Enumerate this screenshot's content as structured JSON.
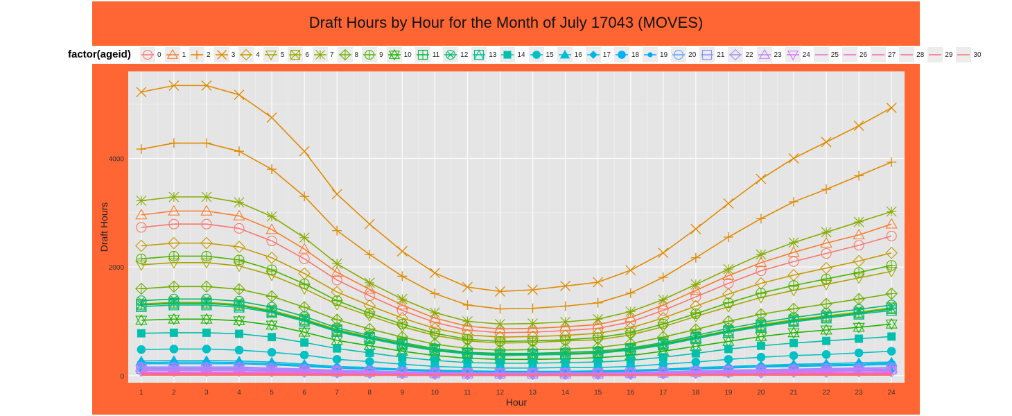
{
  "chart_data": {
    "type": "line",
    "title": "Draft Hours by Hour for the Month of July 17043 (MOVES)",
    "xlabel": "Hour",
    "ylabel": "Draft Hours",
    "x": [
      1,
      2,
      3,
      4,
      5,
      6,
      7,
      8,
      9,
      10,
      11,
      12,
      13,
      14,
      15,
      16,
      17,
      18,
      19,
      20,
      21,
      22,
      23,
      24
    ],
    "xticks": [
      "1",
      "2",
      "3",
      "4",
      "5",
      "6",
      "7",
      "8",
      "9",
      "10",
      "11",
      "12",
      "13",
      "14",
      "15",
      "16",
      "17",
      "18",
      "19",
      "20",
      "21",
      "22",
      "23",
      "24"
    ],
    "yticks": [
      0,
      2000,
      4000
    ],
    "ylim": [
      -130,
      5600
    ],
    "grid": true,
    "legend": {
      "title": "factor(ageid)",
      "position": "top"
    },
    "series": [
      {
        "name": "0",
        "color": "#f8766d",
        "shape": "circle-open",
        "values": [
          2730,
          2790,
          2790,
          2710,
          2480,
          2150,
          1760,
          1470,
          1200,
          980,
          840,
          790,
          800,
          830,
          870,
          990,
          1200,
          1450,
          1700,
          1930,
          2100,
          2250,
          2400,
          2570
        ]
      },
      {
        "name": "1",
        "color": "#f57d2e",
        "shape": "triangle-open",
        "values": [
          2960,
          3030,
          3030,
          2940,
          2690,
          2330,
          1900,
          1590,
          1300,
          1060,
          910,
          860,
          870,
          900,
          940,
          1070,
          1300,
          1570,
          1840,
          2080,
          2270,
          2440,
          2590,
          2790
        ]
      },
      {
        "name": "2",
        "color": "#e08a00",
        "shape": "plus",
        "values": [
          4170,
          4280,
          4280,
          4130,
          3800,
          3300,
          2670,
          2230,
          1830,
          1510,
          1300,
          1230,
          1240,
          1280,
          1340,
          1520,
          1810,
          2170,
          2550,
          2890,
          3200,
          3430,
          3680,
          3930
        ]
      },
      {
        "name": "3",
        "color": "#e08a00",
        "shape": "cross",
        "values": [
          5220,
          5340,
          5340,
          5170,
          4750,
          4130,
          3340,
          2790,
          2290,
          1890,
          1630,
          1550,
          1580,
          1650,
          1720,
          1940,
          2260,
          2700,
          3170,
          3620,
          4000,
          4300,
          4600,
          4930
        ]
      },
      {
        "name": "4",
        "color": "#c49a00",
        "shape": "diamond-open",
        "values": [
          2390,
          2440,
          2440,
          2370,
          2170,
          1880,
          1540,
          1290,
          1060,
          870,
          750,
          710,
          720,
          740,
          780,
          880,
          1060,
          1280,
          1500,
          1700,
          1850,
          1980,
          2110,
          2260
        ]
      },
      {
        "name": "5",
        "color": "#a8a400",
        "shape": "tri-down-open",
        "values": [
          2040,
          2080,
          2080,
          2020,
          1850,
          1600,
          1310,
          1100,
          900,
          740,
          640,
          600,
          610,
          640,
          660,
          750,
          900,
          1090,
          1270,
          1440,
          1570,
          1680,
          1800,
          1920
        ]
      },
      {
        "name": "6",
        "color": "#99a800",
        "shape": "square-cross",
        "values": [
          1320,
          1350,
          1350,
          1310,
          1200,
          1040,
          850,
          710,
          590,
          480,
          420,
          390,
          400,
          410,
          430,
          490,
          590,
          710,
          830,
          940,
          1030,
          1100,
          1170,
          1250
        ]
      },
      {
        "name": "7",
        "color": "#86ac00",
        "shape": "asterisk",
        "values": [
          3220,
          3290,
          3290,
          3190,
          2930,
          2540,
          2060,
          1710,
          1410,
          1160,
          1000,
          950,
          960,
          990,
          1040,
          1180,
          1400,
          1680,
          1960,
          2230,
          2450,
          2640,
          2830,
          3020
        ]
      },
      {
        "name": "8",
        "color": "#6fb000",
        "shape": "diamond-plus",
        "values": [
          1600,
          1640,
          1640,
          1590,
          1460,
          1260,
          1030,
          860,
          710,
          580,
          500,
          470,
          480,
          490,
          520,
          590,
          710,
          850,
          1000,
          1130,
          1230,
          1320,
          1410,
          1510
        ]
      },
      {
        "name": "9",
        "color": "#4cb400",
        "shape": "circle-plus",
        "values": [
          2150,
          2200,
          2200,
          2130,
          1950,
          1690,
          1380,
          1150,
          950,
          780,
          670,
          630,
          640,
          660,
          700,
          790,
          950,
          1140,
          1340,
          1520,
          1660,
          1780,
          1900,
          2030
        ]
      },
      {
        "name": "10",
        "color": "#1bb400",
        "shape": "star-david",
        "values": [
          1020,
          1040,
          1040,
          1010,
          930,
          800,
          650,
          550,
          450,
          370,
          320,
          300,
          300,
          310,
          330,
          370,
          450,
          540,
          630,
          720,
          790,
          840,
          890,
          950
        ]
      },
      {
        "name": "11",
        "color": "#00b83f",
        "shape": "square-plus",
        "values": [
          1300,
          1330,
          1330,
          1290,
          1180,
          1020,
          830,
          700,
          580,
          470,
          410,
          380,
          390,
          400,
          420,
          480,
          580,
          700,
          820,
          920,
          1010,
          1080,
          1150,
          1230
        ]
      },
      {
        "name": "12",
        "color": "#00bb6b",
        "shape": "circle-cross",
        "values": [
          1380,
          1410,
          1410,
          1370,
          1260,
          1090,
          880,
          740,
          610,
          500,
          430,
          410,
          410,
          430,
          450,
          510,
          610,
          740,
          870,
          980,
          1070,
          1150,
          1220,
          1300
        ]
      },
      {
        "name": "13",
        "color": "#00be8e",
        "shape": "square-tri",
        "values": [
          1270,
          1300,
          1300,
          1260,
          1160,
          1000,
          810,
          680,
          560,
          460,
          400,
          370,
          380,
          390,
          410,
          470,
          560,
          680,
          800,
          900,
          990,
          1060,
          1130,
          1200
        ]
      },
      {
        "name": "14",
        "color": "#00c0ab",
        "shape": "square",
        "values": [
          780,
          790,
          790,
          770,
          710,
          610,
          500,
          420,
          340,
          280,
          240,
          230,
          230,
          240,
          250,
          280,
          340,
          410,
          490,
          550,
          600,
          640,
          680,
          720
        ]
      },
      {
        "name": "15",
        "color": "#00c1c6",
        "shape": "circle",
        "values": [
          480,
          490,
          490,
          470,
          430,
          380,
          300,
          260,
          210,
          170,
          150,
          140,
          140,
          150,
          150,
          170,
          210,
          250,
          300,
          340,
          370,
          390,
          420,
          450
        ]
      },
      {
        "name": "16",
        "color": "#00bdd8",
        "shape": "triangle",
        "values": [
          270,
          280,
          280,
          270,
          250,
          210,
          170,
          150,
          120,
          100,
          90,
          80,
          80,
          80,
          90,
          100,
          120,
          150,
          170,
          190,
          210,
          220,
          240,
          250
        ]
      },
      {
        "name": "17",
        "color": "#00b8e5",
        "shape": "diamond",
        "values": [
          240,
          250,
          250,
          240,
          220,
          190,
          150,
          130,
          110,
          90,
          80,
          70,
          70,
          70,
          80,
          90,
          110,
          130,
          150,
          170,
          190,
          200,
          210,
          230
        ]
      },
      {
        "name": "18",
        "color": "#00b2f3",
        "shape": "circle",
        "values": [
          220,
          220,
          220,
          220,
          200,
          170,
          140,
          120,
          100,
          80,
          70,
          70,
          70,
          70,
          70,
          80,
          100,
          120,
          140,
          160,
          170,
          180,
          190,
          210
        ]
      },
      {
        "name": "19",
        "color": "#00a9ff",
        "shape": "circle-small",
        "values": [
          100,
          100,
          100,
          100,
          90,
          80,
          60,
          50,
          40,
          40,
          30,
          30,
          30,
          30,
          30,
          40,
          40,
          50,
          60,
          70,
          80,
          80,
          90,
          90
        ]
      },
      {
        "name": "20",
        "color": "#5ea0ff",
        "shape": "circle-bar",
        "values": [
          160,
          160,
          160,
          160,
          140,
          120,
          100,
          90,
          70,
          60,
          50,
          50,
          50,
          50,
          50,
          60,
          70,
          90,
          100,
          110,
          120,
          130,
          140,
          150
        ]
      },
      {
        "name": "21",
        "color": "#8a94ff",
        "shape": "square-bar",
        "values": [
          130,
          130,
          130,
          130,
          120,
          100,
          80,
          70,
          60,
          50,
          40,
          40,
          40,
          40,
          40,
          50,
          60,
          70,
          80,
          90,
          100,
          110,
          110,
          120
        ]
      },
      {
        "name": "22",
        "color": "#a88aff",
        "shape": "diamond-open",
        "values": [
          90,
          90,
          90,
          90,
          80,
          70,
          60,
          50,
          40,
          30,
          30,
          30,
          30,
          30,
          30,
          30,
          40,
          50,
          60,
          60,
          70,
          70,
          80,
          80
        ]
      },
      {
        "name": "23",
        "color": "#c27eff",
        "shape": "triangle-open",
        "values": [
          150,
          150,
          150,
          150,
          140,
          120,
          100,
          80,
          70,
          60,
          50,
          50,
          50,
          50,
          50,
          60,
          70,
          80,
          100,
          110,
          120,
          130,
          130,
          140
        ]
      },
      {
        "name": "24",
        "color": "#d774f4",
        "shape": "tri-down-open",
        "values": [
          110,
          110,
          110,
          110,
          100,
          90,
          70,
          60,
          50,
          40,
          40,
          30,
          30,
          40,
          40,
          40,
          50,
          60,
          70,
          80,
          90,
          90,
          100,
          100
        ]
      },
      {
        "name": "25",
        "color": "#e76be3",
        "shape": "none",
        "values": [
          60,
          60,
          60,
          60,
          60,
          50,
          40,
          30,
          30,
          20,
          20,
          20,
          20,
          20,
          20,
          20,
          30,
          30,
          40,
          40,
          50,
          50,
          50,
          60
        ]
      },
      {
        "name": "26",
        "color": "#f265cf",
        "shape": "none",
        "values": [
          45,
          45,
          45,
          45,
          40,
          35,
          30,
          25,
          20,
          15,
          15,
          15,
          15,
          15,
          15,
          15,
          20,
          25,
          30,
          35,
          35,
          40,
          40,
          45
        ]
      },
      {
        "name": "27",
        "color": "#fb61b6",
        "shape": "none",
        "values": [
          35,
          35,
          35,
          35,
          30,
          25,
          20,
          18,
          15,
          12,
          10,
          10,
          10,
          10,
          12,
          12,
          15,
          18,
          22,
          25,
          28,
          30,
          32,
          33
        ]
      },
      {
        "name": "28",
        "color": "#fe629c",
        "shape": "none",
        "values": [
          25,
          25,
          25,
          25,
          22,
          19,
          15,
          13,
          11,
          9,
          8,
          7,
          7,
          8,
          8,
          9,
          11,
          13,
          16,
          18,
          20,
          22,
          23,
          24
        ]
      },
      {
        "name": "29",
        "color": "#fd6880",
        "shape": "none",
        "values": [
          15,
          15,
          15,
          15,
          14,
          12,
          10,
          8,
          7,
          6,
          5,
          5,
          5,
          5,
          5,
          6,
          7,
          8,
          10,
          11,
          12,
          13,
          14,
          15
        ]
      },
      {
        "name": "30",
        "color": "#f8766d",
        "shape": "none",
        "values": [
          8,
          8,
          8,
          8,
          7,
          6,
          5,
          4,
          4,
          3,
          3,
          3,
          3,
          3,
          3,
          3,
          4,
          4,
          5,
          6,
          6,
          7,
          7,
          8
        ]
      }
    ]
  }
}
